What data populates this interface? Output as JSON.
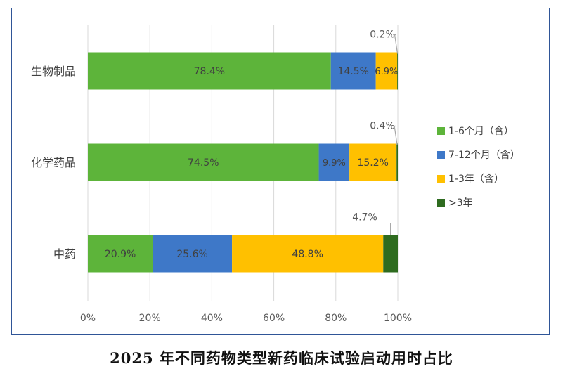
{
  "caption": "2025 年不同药物类型新药临床试验启动用时占比",
  "chart_data": {
    "type": "bar",
    "orientation": "horizontal",
    "stacked": true,
    "categories": [
      "生物制品",
      "化学药品",
      "中药"
    ],
    "series": [
      {
        "name": "1-6个月（含）",
        "color": "#5db43a",
        "values": [
          78.4,
          74.5,
          20.9
        ],
        "labels": [
          "78.4%",
          "74.5%",
          "20.9%"
        ]
      },
      {
        "name": "7-12个月（含）",
        "color": "#3e78c8",
        "values": [
          14.5,
          9.9,
          25.6
        ],
        "labels": [
          "14.5%",
          "9.9%",
          "25.6%"
        ]
      },
      {
        "name": "1-3年（含）",
        "color": "#ffc000",
        "values": [
          6.9,
          15.2,
          48.8
        ],
        "labels": [
          "6.9%",
          "15.2%",
          "48.8%"
        ]
      },
      {
        "name": ">3年",
        "color": "#2e6b1f",
        "values": [
          0.2,
          0.4,
          4.7
        ],
        "labels": [
          "0.2%",
          "0.4%",
          "4.7%"
        ]
      }
    ],
    "xlim": [
      0,
      100
    ],
    "xticks": [
      "0%",
      "20%",
      "40%",
      "60%",
      "80%",
      "100%"
    ],
    "grid": true,
    "legend_position": "right"
  }
}
